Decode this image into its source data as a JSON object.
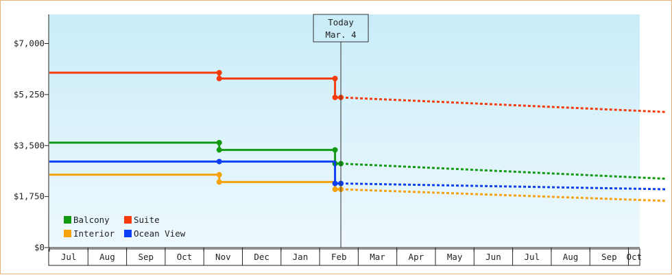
{
  "chart_data": {
    "type": "line",
    "title": "",
    "xlabel": "",
    "ylabel": "",
    "ylim": [
      0,
      8000
    ],
    "y_ticks": [
      {
        "value": 0,
        "label": "$0"
      },
      {
        "value": 1750,
        "label": "$1,750"
      },
      {
        "value": 3500,
        "label": "$3,500"
      },
      {
        "value": 5250,
        "label": "$5,250"
      },
      {
        "value": 7000,
        "label": "$7,000"
      }
    ],
    "months": [
      "Jul",
      "Aug",
      "Sep",
      "Oct",
      "Nov",
      "Dec",
      "Jan",
      "Feb",
      "Mar",
      "Apr",
      "May",
      "Jun",
      "Jul",
      "Aug",
      "Sep",
      "Oct"
    ],
    "today_marker": {
      "line1": "Today",
      "line2": "Mar. 4",
      "month_pos": 7.55
    },
    "grid": false,
    "background": {
      "top_color": "#c9ecf9",
      "bottom_color": "#eef9fd"
    },
    "legend_position": "bottom-left",
    "note": "x values are months elapsed since the first Jul tick label (fractional = partway through month); solid = past prices, dotted = forecast",
    "series": [
      {
        "name": "Balcony",
        "color": "#129a12",
        "actual": [
          [
            0,
            3600
          ],
          [
            4.4,
            3600
          ],
          [
            4.4,
            3350
          ],
          [
            7.4,
            3350
          ],
          [
            7.4,
            2880
          ],
          [
            7.55,
            2880
          ]
        ],
        "forecast": [
          [
            7.55,
            2880
          ],
          [
            15.99,
            2360
          ]
        ],
        "markers": [
          [
            4.4,
            3600
          ],
          [
            4.4,
            3350
          ],
          [
            7.4,
            3350
          ],
          [
            7.4,
            2880
          ],
          [
            7.55,
            2880
          ]
        ]
      },
      {
        "name": "Suite",
        "color": "#f53b0b",
        "actual": [
          [
            0,
            6000
          ],
          [
            4.4,
            6000
          ],
          [
            4.4,
            5800
          ],
          [
            7.4,
            5800
          ],
          [
            7.4,
            5150
          ],
          [
            7.55,
            5150
          ]
        ],
        "forecast": [
          [
            7.55,
            5150
          ],
          [
            15.99,
            4650
          ]
        ],
        "markers": [
          [
            4.4,
            6000
          ],
          [
            4.4,
            5800
          ],
          [
            7.4,
            5800
          ],
          [
            7.4,
            5150
          ],
          [
            7.55,
            5150
          ]
        ]
      },
      {
        "name": "Interior",
        "color": "#f5a20c",
        "actual": [
          [
            0,
            2500
          ],
          [
            4.4,
            2500
          ],
          [
            4.4,
            2250
          ],
          [
            7.4,
            2250
          ],
          [
            7.4,
            2000
          ],
          [
            7.55,
            2000
          ]
        ],
        "forecast": [
          [
            7.55,
            2000
          ],
          [
            15.99,
            1600
          ]
        ],
        "markers": [
          [
            4.4,
            2500
          ],
          [
            4.4,
            2250
          ],
          [
            7.4,
            2000
          ],
          [
            7.55,
            2000
          ]
        ]
      },
      {
        "name": "Ocean View",
        "color": "#0d3ff5",
        "actual": [
          [
            0,
            2950
          ],
          [
            4.4,
            2950
          ],
          [
            4.4,
            2950
          ],
          [
            7.4,
            2950
          ],
          [
            7.4,
            2200
          ],
          [
            7.55,
            2200
          ]
        ],
        "forecast": [
          [
            7.55,
            2200
          ],
          [
            15.99,
            2000
          ]
        ],
        "markers": [
          [
            4.4,
            2950
          ],
          [
            7.4,
            2200
          ],
          [
            7.55,
            2200
          ]
        ]
      }
    ]
  }
}
